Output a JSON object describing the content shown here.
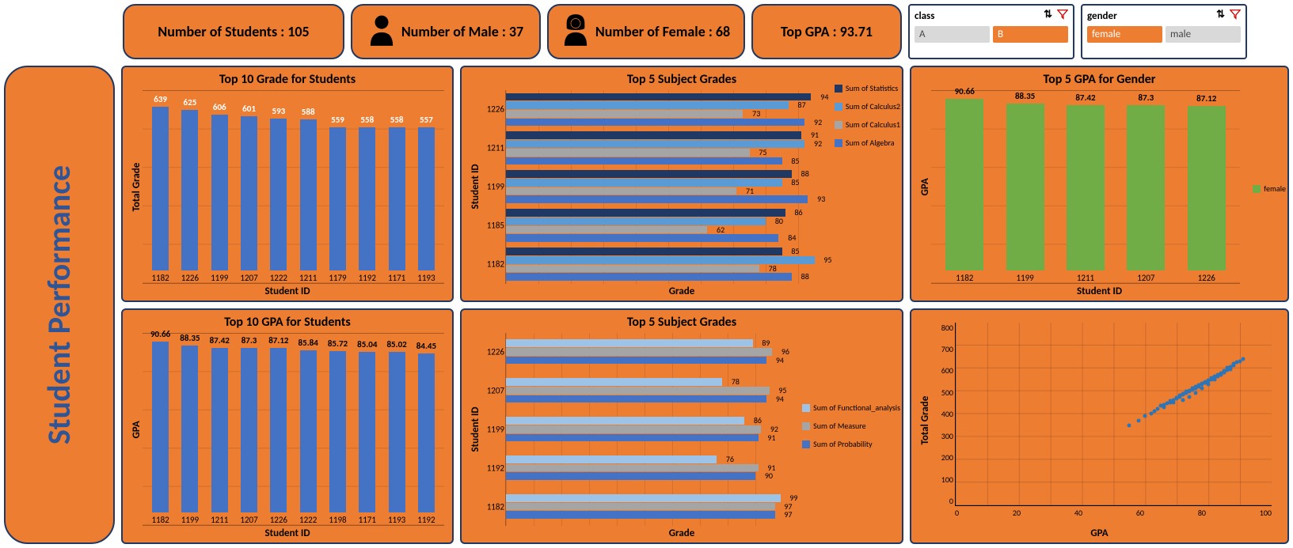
{
  "kpi": {
    "students_label": "Number of Students : 105",
    "male_label": "Number of Male : 37",
    "female_label": "Number of Female : 68",
    "top_gpa_label": "Top GPA  : 93.71"
  },
  "slicers": {
    "class": {
      "title": "class",
      "opts": [
        "A",
        "B"
      ],
      "selected_index": 1
    },
    "gender": {
      "title": "gender",
      "opts": [
        "female",
        "male"
      ],
      "selected_index": 0
    }
  },
  "side_title": "Student Performance",
  "colors": {
    "card_bg": "#ed7d31",
    "border": "#1f3864",
    "bar_blue": "#4472c4",
    "green": "#70ad47",
    "series4": [
      "#1f3864",
      "#5b9bd5",
      "#a5a5a5",
      "#4472c4"
    ],
    "series3": [
      "#9dc3e6",
      "#a5a5a5",
      "#4472c4"
    ],
    "scatter": "#2e75b6"
  },
  "chart_top10_grade": {
    "title": "Top 10 Grade for Students",
    "ylabel": "Total Grade",
    "xlabel": "Student ID",
    "ymax": 700,
    "categories": [
      "1182",
      "1226",
      "1199",
      "1207",
      "1222",
      "1211",
      "1179",
      "1192",
      "1171",
      "1193"
    ],
    "values": [
      639,
      625,
      606,
      601,
      593,
      588,
      559,
      558,
      558,
      557
    ],
    "label_color": "#ffffff",
    "bar_color": "#4472c4"
  },
  "chart_top10_gpa": {
    "title": "Top 10 GPA for Students",
    "ylabel": "GPA",
    "xlabel": "Student ID",
    "ymax": 95,
    "categories": [
      "1182",
      "1199",
      "1211",
      "1207",
      "1226",
      "1222",
      "1198",
      "1171",
      "1193",
      "1192"
    ],
    "values": [
      90.66,
      88.35,
      87.42,
      87.3,
      87.12,
      85.84,
      85.72,
      85.04,
      85.02,
      84.45
    ],
    "label_color": "#000000",
    "bar_color": "#4472c4"
  },
  "chart_subj1": {
    "title": "Top 5 Subject Grades",
    "ylabel": "Student ID",
    "xlabel": "Grade",
    "xmax": 100,
    "categories": [
      "1226",
      "1211",
      "1199",
      "1185",
      "1182"
    ],
    "series_names": [
      "Sum of Statistics",
      "Sum of Calculus2",
      "Sum of Calculus1",
      "Sum of Algebra"
    ],
    "series_colors": [
      "#1f3864",
      "#5b9bd5",
      "#a5a5a5",
      "#4472c4"
    ],
    "data": [
      [
        94,
        87,
        73,
        92
      ],
      [
        91,
        92,
        75,
        85
      ],
      [
        88,
        85,
        71,
        93
      ],
      [
        86,
        80,
        62,
        84
      ],
      [
        85,
        95,
        78,
        88
      ]
    ]
  },
  "chart_subj2": {
    "title": "Top 5 Subject Grades",
    "ylabel": "Student ID",
    "xlabel": "Grade",
    "xmax": 100,
    "categories": [
      "1226",
      "1207",
      "1199",
      "1192",
      "1182"
    ],
    "series_names": [
      "Sum of Functional_analysis",
      "Sum of Measure",
      "Sum of Probability"
    ],
    "series_colors": [
      "#9dc3e6",
      "#a5a5a5",
      "#4472c4"
    ],
    "data": [
      [
        89,
        96,
        94
      ],
      [
        78,
        95,
        94
      ],
      [
        86,
        92,
        91
      ],
      [
        76,
        91,
        90
      ],
      [
        99,
        97,
        97
      ]
    ]
  },
  "chart_gpa_gender": {
    "title": "Top 5 GPA for Gender",
    "ylabel": "GPA",
    "xlabel": "Student ID",
    "ymax": 95,
    "categories": [
      "1182",
      "1199",
      "1211",
      "1207",
      "1226"
    ],
    "values": [
      90.66,
      88.35,
      87.42,
      87.3,
      87.12
    ],
    "label_color": "#000000",
    "bar_color": "#70ad47",
    "legend_label": "female"
  },
  "chart_scatter": {
    "xlabel": "GPA",
    "ylabel": "Total Grade",
    "xmin": 0,
    "xmax": 100,
    "xtick_step": 20,
    "ymin": 0,
    "ymax": 800,
    "ytick_step": 100,
    "color": "#2e75b6",
    "points": [
      [
        55,
        350
      ],
      [
        62,
        400
      ],
      [
        64,
        420
      ],
      [
        65,
        435
      ],
      [
        66,
        440
      ],
      [
        67,
        445
      ],
      [
        68,
        450
      ],
      [
        68,
        455
      ],
      [
        69,
        460
      ],
      [
        70,
        465
      ],
      [
        70,
        470
      ],
      [
        71,
        475
      ],
      [
        71,
        480
      ],
      [
        72,
        485
      ],
      [
        72,
        488
      ],
      [
        73,
        490
      ],
      [
        73,
        495
      ],
      [
        74,
        498
      ],
      [
        74,
        502
      ],
      [
        75,
        505
      ],
      [
        75,
        510
      ],
      [
        76,
        512
      ],
      [
        76,
        518
      ],
      [
        77,
        520
      ],
      [
        77,
        525
      ],
      [
        78,
        528
      ],
      [
        78,
        532
      ],
      [
        79,
        535
      ],
      [
        79,
        540
      ],
      [
        80,
        543
      ],
      [
        80,
        547
      ],
      [
        81,
        550
      ],
      [
        81,
        555
      ],
      [
        82,
        558
      ],
      [
        82,
        562
      ],
      [
        83,
        565
      ],
      [
        83,
        570
      ],
      [
        84,
        573
      ],
      [
        84,
        578
      ],
      [
        85,
        581
      ],
      [
        85,
        585
      ],
      [
        85,
        588
      ],
      [
        86,
        590
      ],
      [
        86,
        595
      ],
      [
        87,
        598
      ],
      [
        87,
        601
      ],
      [
        87,
        606
      ],
      [
        88,
        610
      ],
      [
        88,
        615
      ],
      [
        88,
        620
      ],
      [
        89,
        625
      ],
      [
        90,
        630
      ],
      [
        91,
        639
      ],
      [
        72,
        460
      ],
      [
        74,
        475
      ],
      [
        76,
        490
      ],
      [
        78,
        510
      ],
      [
        80,
        530
      ],
      [
        82,
        550
      ],
      [
        84,
        570
      ],
      [
        60,
        390
      ],
      [
        63,
        410
      ],
      [
        66,
        430
      ],
      [
        69,
        450
      ],
      [
        58,
        370
      ],
      [
        86,
        600
      ],
      [
        87,
        593
      ],
      [
        85,
        580
      ],
      [
        88,
        618
      ],
      [
        73,
        498
      ]
    ]
  }
}
